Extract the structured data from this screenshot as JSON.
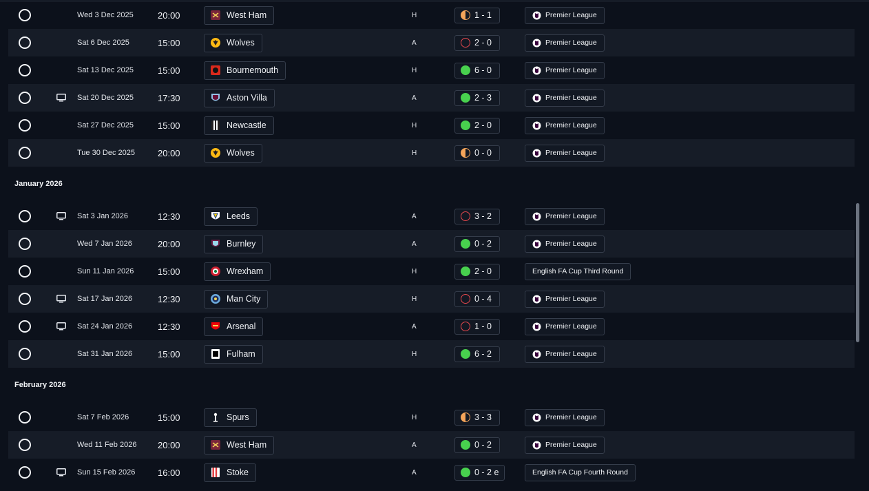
{
  "colors": {
    "win": "#48d14e",
    "loss": "#e5484d",
    "draw": "#f5a55a",
    "background": "#0c111b",
    "row_alt": "#161c27"
  },
  "sections": [
    {
      "month": "",
      "fixtures": [
        {
          "date": "Wed 3 Dec 2025",
          "time": "20:00",
          "team": "West Ham",
          "crest": "hammers-crest-icon",
          "venue": "H",
          "outcome": "draw",
          "score": "1 - 1",
          "competition": "Premier League",
          "pl_logo": true,
          "tv": false
        },
        {
          "date": "Sat 6 Dec 2025",
          "time": "15:00",
          "team": "Wolves",
          "crest": "wolf-crest-icon",
          "venue": "A",
          "outcome": "loss",
          "score": "2 - 0",
          "competition": "Premier League",
          "pl_logo": true,
          "tv": false
        },
        {
          "date": "Sat 13 Dec 2025",
          "time": "15:00",
          "team": "Bournemouth",
          "crest": "cherries-crest-icon",
          "venue": "H",
          "outcome": "win",
          "score": "6 - 0",
          "competition": "Premier League",
          "pl_logo": true,
          "tv": false
        },
        {
          "date": "Sat 20 Dec 2025",
          "time": "17:30",
          "team": "Aston Villa",
          "crest": "lion-crest-icon",
          "venue": "A",
          "outcome": "win",
          "score": "2 - 3",
          "competition": "Premier League",
          "pl_logo": true,
          "tv": true
        },
        {
          "date": "Sat 27 Dec 2025",
          "time": "15:00",
          "team": "Newcastle",
          "crest": "magpie-crest-icon",
          "venue": "H",
          "outcome": "win",
          "score": "2 - 0",
          "competition": "Premier League",
          "pl_logo": true,
          "tv": false
        },
        {
          "date": "Tue 30 Dec 2025",
          "time": "20:00",
          "team": "Wolves",
          "crest": "wolf-crest-icon",
          "venue": "H",
          "outcome": "draw",
          "score": "0 - 0",
          "competition": "Premier League",
          "pl_logo": true,
          "tv": false
        }
      ]
    },
    {
      "month": "January 2026",
      "fixtures": [
        {
          "date": "Sat 3 Jan 2026",
          "time": "12:30",
          "team": "Leeds",
          "crest": "leeds-crest-icon",
          "venue": "A",
          "outcome": "loss",
          "score": "3 - 2",
          "competition": "Premier League",
          "pl_logo": true,
          "tv": true
        },
        {
          "date": "Wed 7 Jan 2026",
          "time": "20:00",
          "team": "Burnley",
          "crest": "burnley-crest-icon",
          "venue": "A",
          "outcome": "win",
          "score": "0 - 2",
          "competition": "Premier League",
          "pl_logo": true,
          "tv": false
        },
        {
          "date": "Sun 11 Jan 2026",
          "time": "15:00",
          "team": "Wrexham",
          "crest": "dragon-crest-icon",
          "venue": "H",
          "outcome": "win",
          "score": "2 - 0",
          "competition": "English FA Cup Third Round",
          "pl_logo": false,
          "tv": false
        },
        {
          "date": "Sat 17 Jan 2026",
          "time": "12:30",
          "team": "Man City",
          "crest": "city-crest-icon",
          "venue": "H",
          "outcome": "loss",
          "score": "0 - 4",
          "competition": "Premier League",
          "pl_logo": true,
          "tv": true
        },
        {
          "date": "Sat 24 Jan 2026",
          "time": "12:30",
          "team": "Arsenal",
          "crest": "cannon-crest-icon",
          "venue": "A",
          "outcome": "loss",
          "score": "1 - 0",
          "competition": "Premier League",
          "pl_logo": true,
          "tv": true
        },
        {
          "date": "Sat 31 Jan 2026",
          "time": "15:00",
          "team": "Fulham",
          "crest": "fulham-crest-icon",
          "venue": "H",
          "outcome": "win",
          "score": "6 - 2",
          "competition": "Premier League",
          "pl_logo": true,
          "tv": false
        }
      ]
    },
    {
      "month": "February 2026",
      "fixtures": [
        {
          "date": "Sat 7 Feb 2026",
          "time": "15:00",
          "team": "Spurs",
          "crest": "cockerel-crest-icon",
          "venue": "H",
          "outcome": "draw",
          "score": "3 - 3",
          "competition": "Premier League",
          "pl_logo": true,
          "tv": false
        },
        {
          "date": "Wed 11 Feb 2026",
          "time": "20:00",
          "team": "West Ham",
          "crest": "hammers-crest-icon",
          "venue": "A",
          "outcome": "win",
          "score": "0 - 2",
          "competition": "Premier League",
          "pl_logo": true,
          "tv": false
        },
        {
          "date": "Sun 15 Feb 2026",
          "time": "16:00",
          "team": "Stoke",
          "crest": "stoke-crest-icon",
          "venue": "A",
          "outcome": "win",
          "score": "0 - 2 e",
          "competition": "English FA Cup Fourth Round",
          "pl_logo": false,
          "tv": true
        }
      ]
    }
  ]
}
